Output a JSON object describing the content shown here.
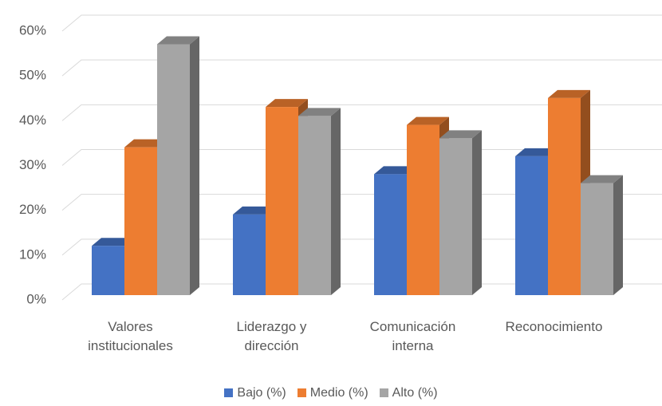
{
  "chart_data": {
    "type": "bar3d",
    "categories": [
      "Valores institucionales",
      "Liderazgo y dirección",
      "Comunicación interna",
      "Reconocimiento"
    ],
    "series": [
      {
        "name": "Bajo (%)",
        "color": "#4472c4",
        "values": [
          11,
          18,
          27,
          31
        ]
      },
      {
        "name": "Medio (%)",
        "color": "#ed7d31",
        "values": [
          33,
          42,
          38,
          44
        ]
      },
      {
        "name": "Alto (%)",
        "color": "#a5a5a5",
        "values": [
          56,
          40,
          35,
          25
        ]
      }
    ],
    "ylim": [
      0,
      60
    ],
    "yticks": [
      {
        "value": 0,
        "label": "0%"
      },
      {
        "value": 10,
        "label": "10%"
      },
      {
        "value": 20,
        "label": "20%"
      },
      {
        "value": 30,
        "label": "30%"
      },
      {
        "value": 40,
        "label": "40%"
      },
      {
        "value": 50,
        "label": "50%"
      },
      {
        "value": 60,
        "label": "60%"
      }
    ],
    "grid": true,
    "legend": "bottom"
  }
}
